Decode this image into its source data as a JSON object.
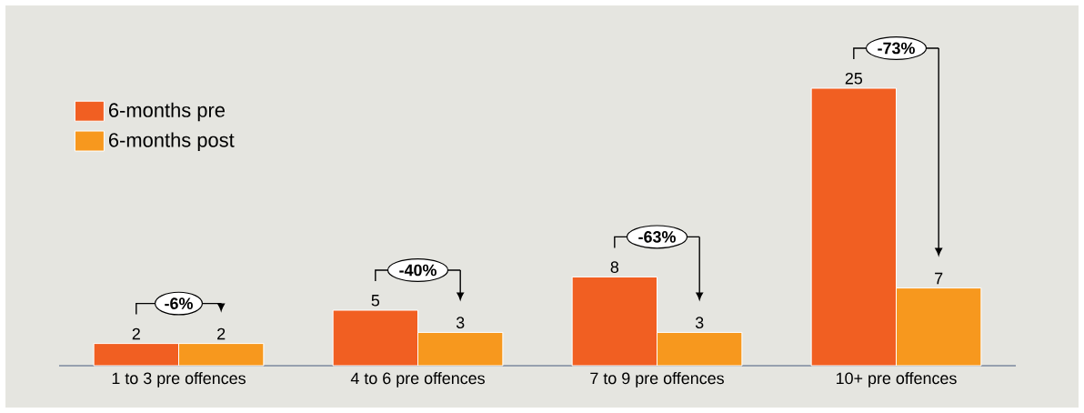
{
  "chart_data": {
    "type": "bar",
    "categories": [
      "1 to 3 pre offences",
      "4 to 6 pre offences",
      "7 to 9 pre offences",
      "10+ pre offences"
    ],
    "series": [
      {
        "name": "6-months pre",
        "color": "#f15f22",
        "values": [
          2,
          5,
          8,
          25
        ]
      },
      {
        "name": "6-months post",
        "color": "#f7981e",
        "values": [
          2,
          3,
          3,
          7
        ]
      }
    ],
    "data_labels": true,
    "legend": "top left",
    "annotations": [
      "-6%",
      "-40%",
      "-63%",
      "-73%"
    ]
  }
}
